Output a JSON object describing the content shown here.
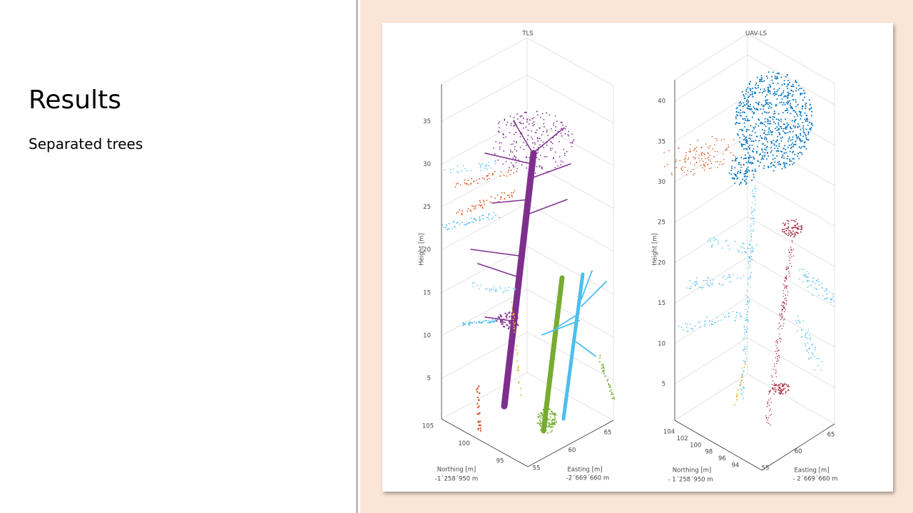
{
  "slide": {
    "title": "Results",
    "subtitle": "Separated trees"
  },
  "figure": {
    "panels": [
      {
        "title": "TLS",
        "z_label": "Height [m]",
        "z_ticks": [
          5,
          10,
          15,
          20,
          25,
          30,
          35
        ],
        "northing_label": "Northing [m]",
        "northing_offset": "-1´258´950 m",
        "northing_ticks": [
          105,
          100,
          95
        ],
        "easting_label": "Easting [m]",
        "easting_offset": "-2´669´660 m",
        "easting_ticks": [
          55,
          60,
          65
        ]
      },
      {
        "title": "UAV-LS",
        "z_label": "Height [m]",
        "z_ticks": [
          5,
          10,
          15,
          20,
          25,
          30,
          35,
          40
        ],
        "northing_label": "Northing [m]",
        "northing_offset": "- 1´258´950 m",
        "northing_ticks": [
          104,
          102,
          100,
          98,
          96,
          94
        ],
        "easting_label": "Easting [m]",
        "easting_offset": "- 2´669´660 m",
        "easting_ticks": [
          55,
          60,
          65
        ]
      }
    ]
  }
}
